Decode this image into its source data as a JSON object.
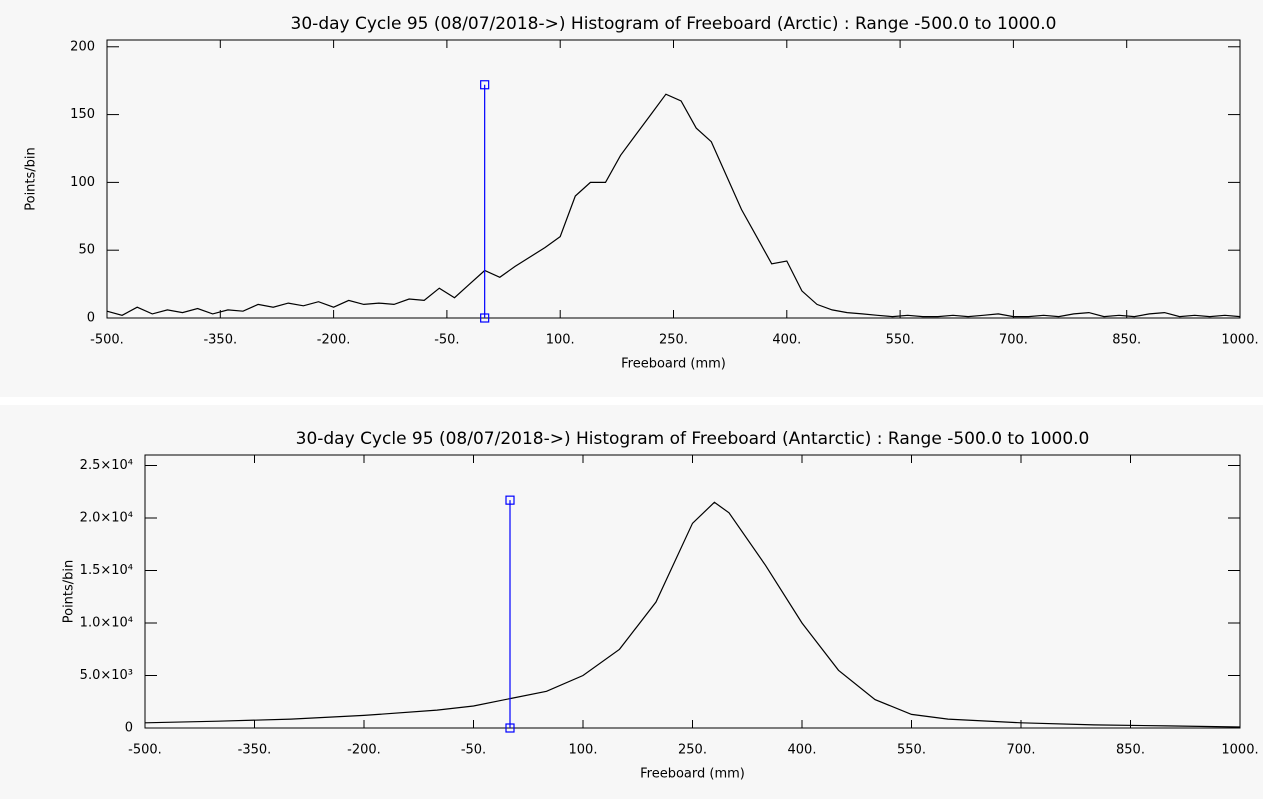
{
  "chart_data": [
    {
      "type": "line",
      "title": "30-day Cycle 95 (08/07/2018->) Histogram of Freeboard (Arctic) :  Range -500.0 to 1000.0",
      "xlabel": "Freeboard (mm)",
      "ylabel": "Points/bin",
      "x": [
        -500,
        -480,
        -460,
        -440,
        -420,
        -400,
        -380,
        -360,
        -340,
        -320,
        -300,
        -280,
        -260,
        -240,
        -220,
        -200,
        -180,
        -160,
        -140,
        -120,
        -100,
        -80,
        -60,
        -40,
        -20,
        0,
        20,
        40,
        60,
        80,
        100,
        120,
        140,
        160,
        180,
        200,
        220,
        240,
        260,
        280,
        300,
        320,
        340,
        360,
        380,
        400,
        420,
        440,
        460,
        480,
        500,
        520,
        540,
        560,
        580,
        600,
        620,
        640,
        660,
        680,
        700,
        720,
        740,
        760,
        780,
        800,
        820,
        840,
        860,
        880,
        900,
        920,
        940,
        960,
        980,
        1000
      ],
      "series": [
        {
          "color": "#000000",
          "values": [
            5,
            2,
            8,
            3,
            6,
            4,
            7,
            3,
            6,
            5,
            10,
            8,
            11,
            9,
            12,
            8,
            13,
            10,
            11,
            10,
            14,
            13,
            22,
            15,
            25,
            35,
            30,
            38,
            45,
            52,
            60,
            90,
            100,
            100,
            120,
            135,
            150,
            165,
            160,
            140,
            130,
            105,
            80,
            60,
            40,
            42,
            20,
            10,
            6,
            4,
            3,
            2,
            1,
            2,
            1,
            1,
            2,
            1,
            2,
            3,
            1,
            1,
            2,
            1,
            3,
            4,
            1,
            2,
            1,
            3,
            4,
            1,
            2,
            1,
            2,
            1
          ]
        }
      ],
      "marker": {
        "x": 0,
        "y": [
          0,
          172
        ],
        "color": "#0000ff"
      },
      "xlim": [
        -500,
        1000
      ],
      "xticks": [
        {
          "value": -500,
          "label": "-500."
        },
        {
          "value": -350,
          "label": "-350."
        },
        {
          "value": -200,
          "label": "-200."
        },
        {
          "value": -50,
          "label": "-50."
        },
        {
          "value": 100,
          "label": "100."
        },
        {
          "value": 250,
          "label": "250."
        },
        {
          "value": 400,
          "label": "400."
        },
        {
          "value": 550,
          "label": "550."
        },
        {
          "value": 700,
          "label": "700."
        },
        {
          "value": 850,
          "label": "850."
        },
        {
          "value": 1000,
          "label": "1000."
        }
      ],
      "ylim": [
        0,
        205
      ],
      "yticks": [
        0,
        50,
        100,
        150,
        200
      ]
    },
    {
      "type": "line",
      "title": "30-day Cycle 95 (08/07/2018->) Histogram of Freeboard (Antarctic) :  Range -500.0 to 1000.0",
      "xlabel": "Freeboard (mm)",
      "ylabel": "Points/bin",
      "x": [
        -500,
        -400,
        -300,
        -200,
        -100,
        -50,
        0,
        50,
        100,
        150,
        200,
        250,
        280,
        300,
        350,
        400,
        450,
        500,
        550,
        600,
        700,
        800,
        900,
        1000
      ],
      "series": [
        {
          "color": "#000000",
          "values": [
            500,
            650,
            850,
            1200,
            1700,
            2100,
            2800,
            3500,
            5000,
            7500,
            12000,
            19500,
            21500,
            20500,
            15500,
            10000,
            5500,
            2700,
            1300,
            850,
            500,
            300,
            200,
            100
          ]
        }
      ],
      "marker": {
        "x": 0,
        "y": [
          0,
          21700
        ],
        "color": "#0000ff"
      },
      "xlim": [
        -500,
        1000
      ],
      "xticks": [
        {
          "value": -500,
          "label": "-500."
        },
        {
          "value": -350,
          "label": "-350."
        },
        {
          "value": -200,
          "label": "-200."
        },
        {
          "value": -50,
          "label": "-50."
        },
        {
          "value": 100,
          "label": "100."
        },
        {
          "value": 250,
          "label": "250."
        },
        {
          "value": 400,
          "label": "400."
        },
        {
          "value": 550,
          "label": "550."
        },
        {
          "value": 700,
          "label": "700."
        },
        {
          "value": 850,
          "label": "850."
        },
        {
          "value": 1000,
          "label": "1000."
        }
      ],
      "ylim": [
        0,
        26000
      ],
      "yticks": [
        0,
        {
          "value": 5000,
          "label": "5.0×10³"
        },
        {
          "value": 10000,
          "label": "1.0×10⁴"
        },
        {
          "value": 15000,
          "label": "1.5×10⁴"
        },
        {
          "value": 20000,
          "label": "2.0×10⁴"
        },
        {
          "value": 25000,
          "label": "2.5×10⁴"
        }
      ]
    }
  ]
}
